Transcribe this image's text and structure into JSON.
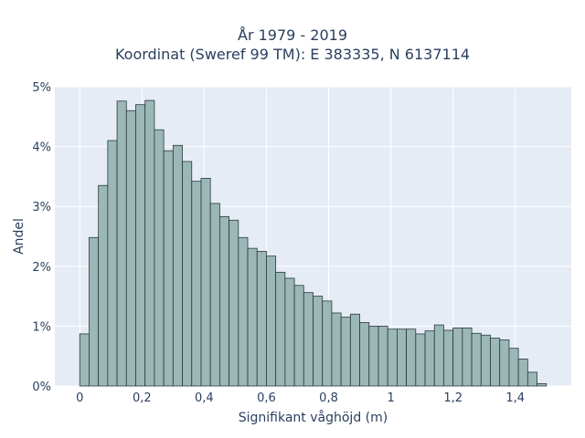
{
  "chart_data": {
    "type": "bar",
    "title": "År 1979 - 2019",
    "subtitle": "Koordinat (Sweref 99 TM): E 383335, N 6137114",
    "xlabel": "Signifikant våghöjd (m)",
    "ylabel": "Andel",
    "xlim": [
      -0.08,
      1.58
    ],
    "ylim": [
      0,
      5
    ],
    "x_ticks": [
      0,
      0.2,
      0.4,
      0.6,
      0.8,
      1,
      1.2,
      1.4
    ],
    "x_tick_labels": [
      "0",
      "0,2",
      "0,4",
      "0,6",
      "0,8",
      "1",
      "1,2",
      "1,4"
    ],
    "y_ticks": [
      0,
      1,
      2,
      3,
      4,
      5
    ],
    "y_tick_labels": [
      "0%",
      "1%",
      "2%",
      "3%",
      "4%",
      "5%"
    ],
    "grid": true,
    "bin_width": 0.03,
    "bin_starts": [
      0.0,
      0.03,
      0.06,
      0.09,
      0.12,
      0.15,
      0.18,
      0.21,
      0.24,
      0.27,
      0.3,
      0.33,
      0.36,
      0.39,
      0.42,
      0.45,
      0.48,
      0.51,
      0.54,
      0.57,
      0.6,
      0.63,
      0.66,
      0.69,
      0.72,
      0.75,
      0.78,
      0.81,
      0.84,
      0.87,
      0.9,
      0.93,
      0.96,
      0.99,
      1.02,
      1.05,
      1.08,
      1.11,
      1.14,
      1.17,
      1.2,
      1.23,
      1.26,
      1.29,
      1.32,
      1.35,
      1.38,
      1.41,
      1.44,
      1.47
    ],
    "values": [
      0.87,
      2.48,
      3.35,
      4.1,
      4.76,
      4.6,
      4.7,
      4.77,
      4.28,
      3.93,
      4.02,
      3.75,
      3.42,
      3.47,
      3.05,
      2.83,
      2.77,
      2.48,
      2.3,
      2.25,
      2.17,
      1.9,
      1.8,
      1.68,
      1.56,
      1.5,
      1.42,
      1.22,
      1.15,
      1.2,
      1.06,
      1.0,
      1.0,
      0.95,
      0.95,
      0.95,
      0.87,
      0.92,
      1.02,
      0.93,
      0.97,
      0.97,
      0.88,
      0.85,
      0.8,
      0.77,
      0.63,
      0.45,
      0.23,
      0.04
    ],
    "bar_color": "#9bb7b6",
    "bar_edge_color": "#2b3a3a",
    "plot_bg": "#e5ecf6",
    "grid_color": "#ffffff"
  }
}
